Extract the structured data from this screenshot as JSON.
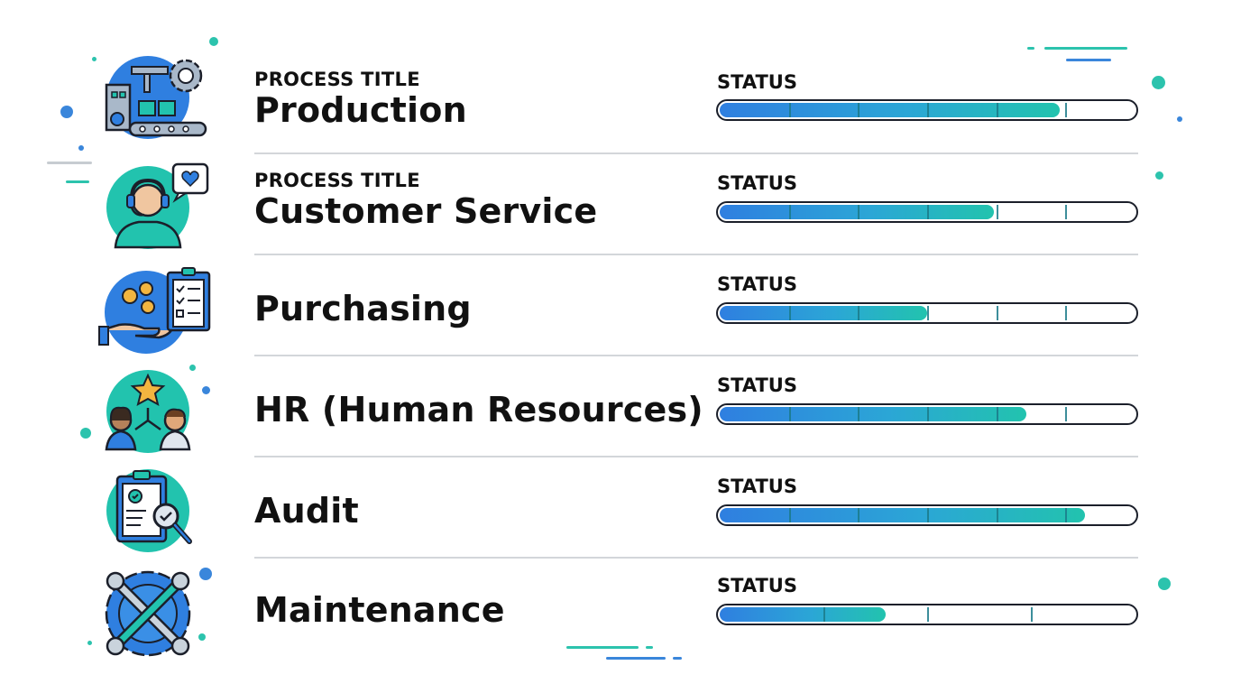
{
  "rows": [
    {
      "icon": "factory-conveyor-gear-icon",
      "eyebrow": "PROCESS TITLE",
      "title": "Production",
      "status_label": "STATUS",
      "progress": 0.82,
      "segments": 6
    },
    {
      "icon": "customer-service-headset-icon",
      "eyebrow": "PROCESS TITLE",
      "title": "Customer Service",
      "status_label": "STATUS",
      "progress": 0.66,
      "segments": 6
    },
    {
      "icon": "purchasing-hand-coins-clipboard-icon",
      "eyebrow": "",
      "title": "Purchasing",
      "status_label": "STATUS",
      "progress": 0.5,
      "segments": 6
    },
    {
      "icon": "hr-people-star-icon",
      "eyebrow": "",
      "title": "HR (Human Resources)",
      "status_label": "STATUS",
      "progress": 0.74,
      "segments": 6
    },
    {
      "icon": "audit-clipboard-magnifier-icon",
      "eyebrow": "",
      "title": "Audit",
      "status_label": "STATUS",
      "progress": 0.88,
      "segments": 6
    },
    {
      "icon": "maintenance-wrenches-gear-icon",
      "eyebrow": "",
      "title": "Maintenance",
      "status_label": "STATUS",
      "progress": 0.4,
      "segments": 4
    }
  ],
  "colors": {
    "accent_blue": "#2f7fe0",
    "accent_teal": "#22c3ae",
    "outline": "#1b1f2a",
    "divider": "#d3d6da"
  }
}
